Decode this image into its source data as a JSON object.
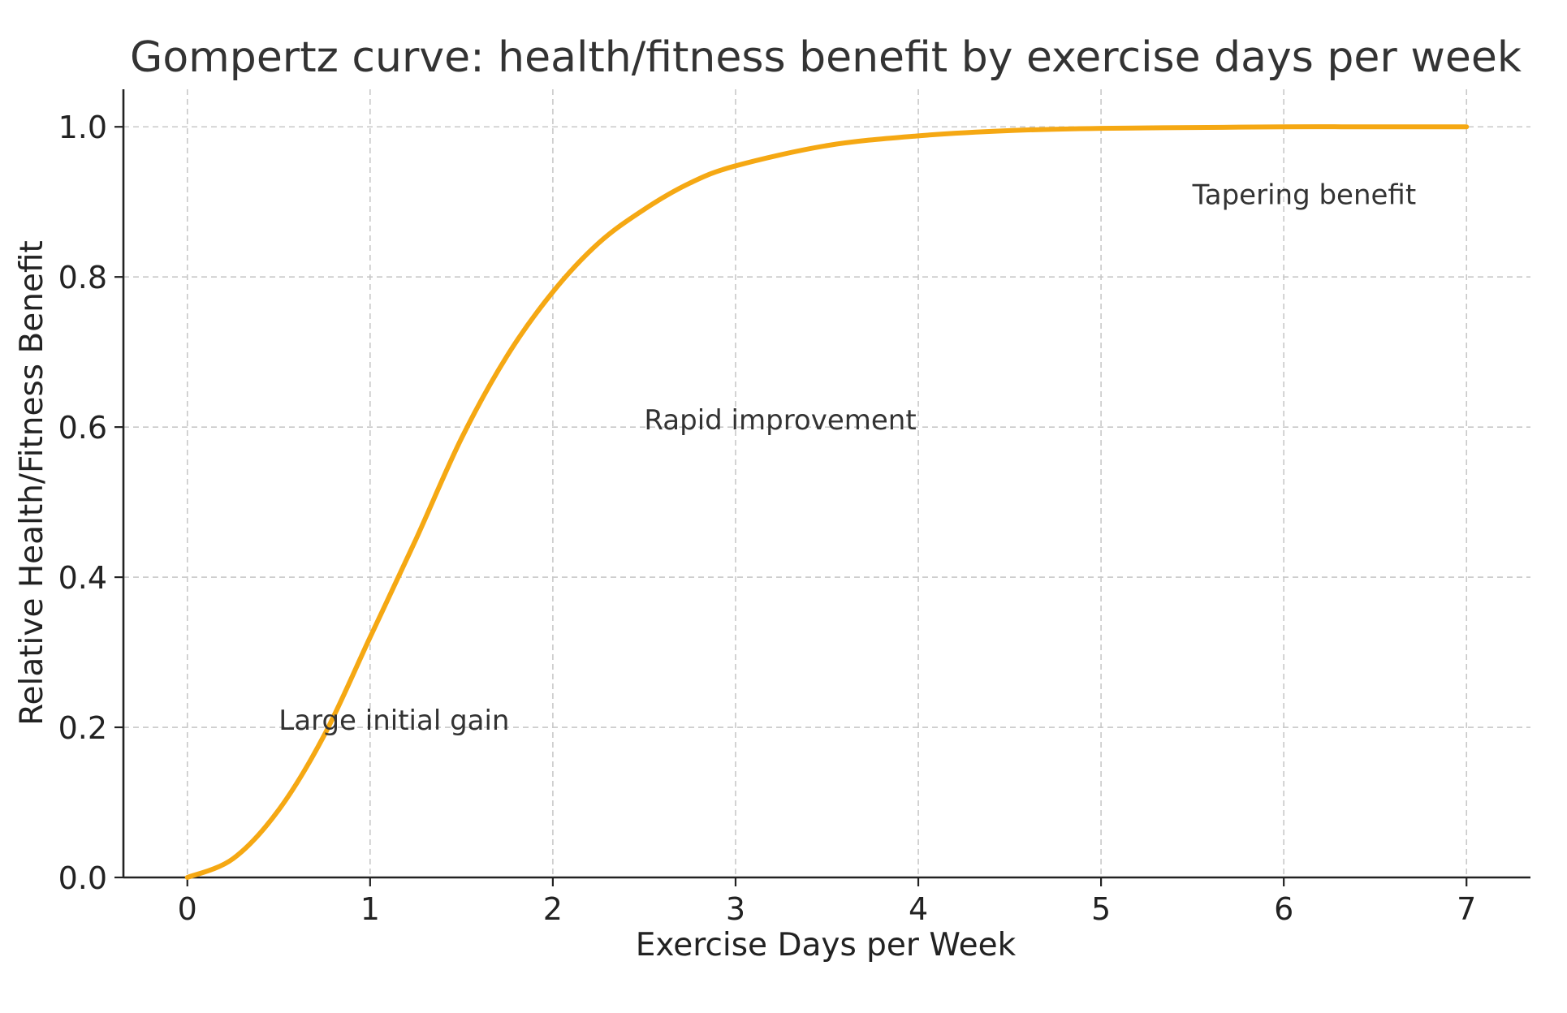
{
  "colors": {
    "curve": "#F5A813",
    "background": "#FFFFFF"
  },
  "chart_data": {
    "type": "line",
    "title": "Gompertz curve: health/fitness benefit by exercise days per week",
    "xlabel": "Exercise Days per Week",
    "ylabel": "Relative Health/Fitness Benefit",
    "xlim": [
      -0.35,
      7.35
    ],
    "ylim": [
      0.0,
      1.05
    ],
    "x_ticks": [
      0,
      1,
      2,
      3,
      4,
      5,
      6,
      7
    ],
    "x_tick_labels": [
      "0",
      "1",
      "2",
      "3",
      "4",
      "5",
      "6",
      "7"
    ],
    "y_ticks": [
      0.0,
      0.2,
      0.4,
      0.6,
      0.8,
      1.0
    ],
    "y_tick_labels": [
      "0.0",
      "0.2",
      "0.4",
      "0.6",
      "0.8",
      "1.0"
    ],
    "grid": true,
    "legend": "none",
    "series": [
      {
        "color": "#F5A813",
        "x": [
          0,
          0.25,
          0.5,
          0.75,
          1.0,
          1.25,
          1.5,
          1.75,
          2.0,
          2.25,
          2.5,
          2.75,
          3.0,
          3.5,
          4.0,
          4.5,
          5.0,
          5.5,
          6.0,
          6.5,
          7.0
        ],
        "y": [
          0.0,
          0.025,
          0.09,
          0.19,
          0.32,
          0.45,
          0.585,
          0.695,
          0.78,
          0.845,
          0.89,
          0.925,
          0.948,
          0.975,
          0.988,
          0.995,
          0.998,
          0.999,
          1.0,
          1.0,
          1.0
        ]
      }
    ],
    "annotations": [
      {
        "text": "Large initial gain",
        "x": 0.5,
        "y": 0.21
      },
      {
        "text": "Rapid improvement",
        "x": 2.5,
        "y": 0.61
      },
      {
        "text": "Tapering benefit",
        "x": 5.5,
        "y": 0.91
      }
    ]
  }
}
